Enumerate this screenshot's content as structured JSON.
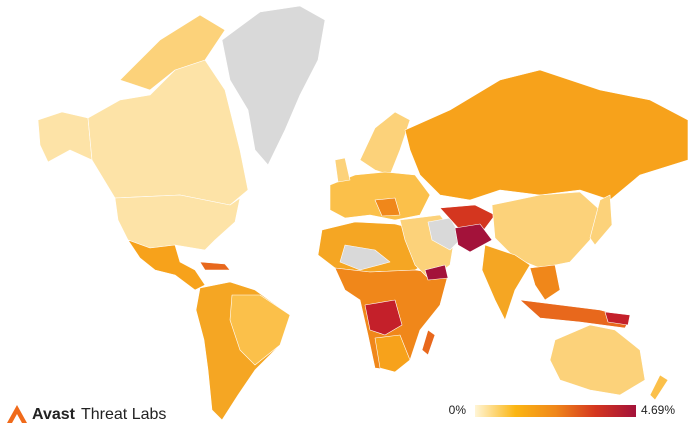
{
  "logo": {
    "brand": "Avast",
    "product": "Threat Labs"
  },
  "legend": {
    "min": {
      "value": 0,
      "label": "0%"
    },
    "max": {
      "value": 4.69,
      "label": "4.69%"
    },
    "colors": [
      "#fff5d6",
      "#fbb613",
      "#f0871a",
      "#d4361f",
      "#a3123a"
    ]
  }
}
